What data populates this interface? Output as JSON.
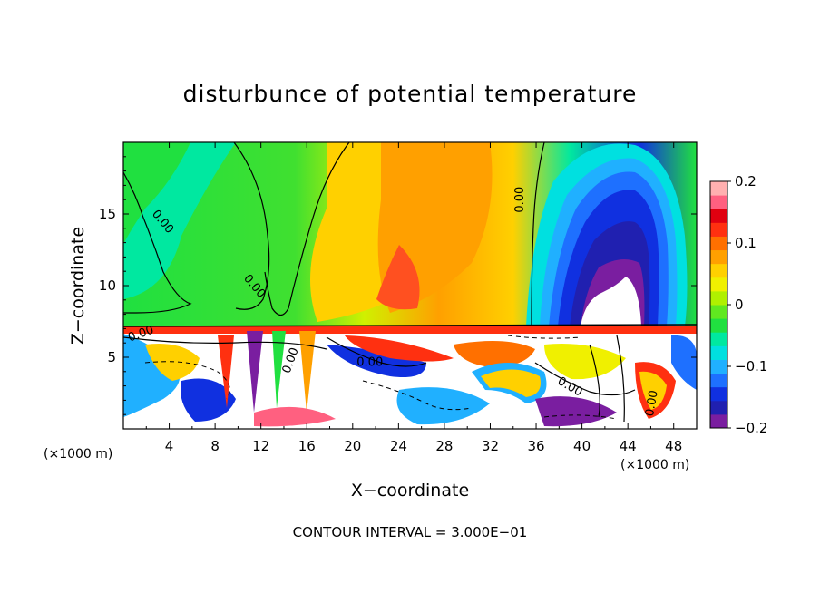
{
  "chart_data": {
    "type": "heatmap",
    "title": "disturbunce of potential temperature",
    "xlabel": "X−coordinate",
    "ylabel": "Z−coordinate",
    "x_unit_left": "(×1000 m)",
    "x_unit_right": "(×1000 m)",
    "x_range": [
      0,
      50
    ],
    "y_range": [
      0,
      20
    ],
    "x_ticks": [
      4,
      8,
      12,
      16,
      20,
      24,
      28,
      32,
      36,
      40,
      44,
      48
    ],
    "y_ticks": [
      5,
      10,
      15
    ],
    "colorbar": {
      "range": [
        -0.2,
        0.2
      ],
      "ticks": [
        {
          "value": 0.2,
          "label": "0.2"
        },
        {
          "value": 0.1,
          "label": "0.1"
        },
        {
          "value": 0,
          "label": "0"
        },
        {
          "value": -0.1,
          "label": "−0.1"
        },
        {
          "value": -0.2,
          "label": "−0.2"
        }
      ],
      "colors": [
        "#7a1ea0",
        "#2020b0",
        "#1030e0",
        "#1e70ff",
        "#20b0ff",
        "#00e0e0",
        "#00e8a0",
        "#20e040",
        "#60e820",
        "#b0f000",
        "#f0f000",
        "#ffd000",
        "#ffa000",
        "#ff7000",
        "#ff3010",
        "#e00010",
        "#ff6080",
        "#ffb0b0"
      ]
    },
    "contour_labels": [
      {
        "text": "0.00",
        "x": 3.5,
        "z": 14.5,
        "angle": 50
      },
      {
        "text": "0.00",
        "x": 11.5,
        "z": 10.0,
        "angle": 50
      },
      {
        "text": "0.00",
        "x": 34.5,
        "z": 16.0,
        "angle": -90
      },
      {
        "text": "0.00",
        "x": 1.5,
        "z": 6.7,
        "angle": -20
      },
      {
        "text": "0.00",
        "x": 14.5,
        "z": 4.8,
        "angle": -70
      },
      {
        "text": "0.00",
        "x": 21.5,
        "z": 4.7,
        "angle": 0
      },
      {
        "text": "0.00",
        "x": 39.0,
        "z": 3.0,
        "angle": 30
      },
      {
        "text": "0.00",
        "x": 46.0,
        "z": 1.8,
        "angle": -80
      }
    ],
    "contour_interval_text": "CONTOUR INTERVAL =  3.000E−01"
  }
}
